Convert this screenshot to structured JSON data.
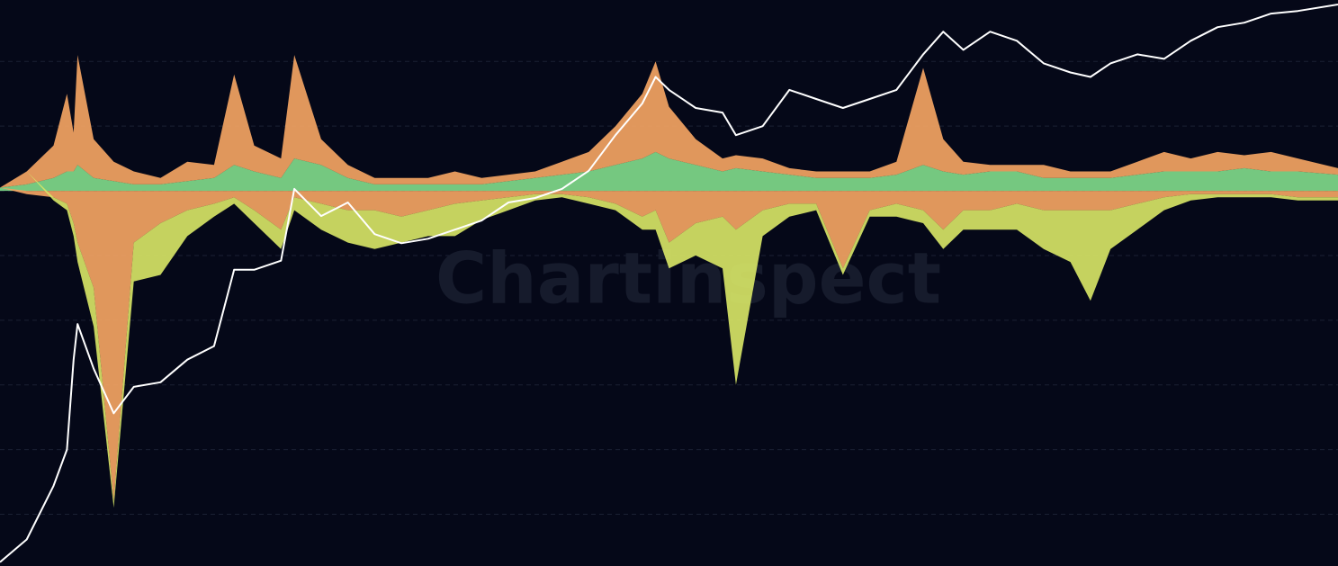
{
  "chart_data": {
    "type": "area",
    "watermark": "Chartinspect",
    "background": "#050818",
    "grid": true,
    "xlim": [
      0,
      100
    ],
    "ylim": [
      -5.8,
      2.95
    ],
    "yticks": [
      -5,
      -4,
      -3,
      -2,
      -1,
      0,
      1,
      2
    ],
    "x": [
      0,
      2,
      4,
      5,
      5.5,
      5.8,
      7,
      8.5,
      10,
      12,
      14,
      16,
      17.5,
      19,
      21,
      22,
      24,
      26,
      28,
      30,
      32,
      34,
      36,
      38,
      40,
      42,
      44,
      46,
      48,
      49,
      50,
      52,
      54,
      55,
      57,
      59,
      61,
      63,
      65,
      67,
      69,
      70.5,
      72,
      74,
      76,
      78,
      80,
      81.5,
      83,
      85,
      87,
      89,
      91,
      93,
      95,
      97,
      100
    ],
    "series": [
      {
        "type": "area",
        "color": "#7fd98a",
        "values": [
          0.05,
          0.1,
          0.2,
          0.3,
          0.3,
          0.4,
          0.2,
          0.15,
          0.1,
          0.1,
          0.15,
          0.2,
          0.4,
          0.3,
          0.2,
          0.5,
          0.4,
          0.2,
          0.1,
          0.1,
          0.1,
          0.1,
          0.1,
          0.15,
          0.2,
          0.25,
          0.3,
          0.4,
          0.5,
          0.6,
          0.5,
          0.4,
          0.3,
          0.35,
          0.3,
          0.25,
          0.2,
          0.2,
          0.2,
          0.25,
          0.4,
          0.3,
          0.25,
          0.3,
          0.3,
          0.2,
          0.2,
          0.2,
          0.2,
          0.25,
          0.3,
          0.3,
          0.3,
          0.35,
          0.3,
          0.3,
          0.25
        ]
      },
      {
        "type": "area",
        "color": "#f3a463",
        "values": [
          0,
          0.2,
          0.5,
          1.2,
          0.6,
          1.7,
          0.6,
          0.3,
          0.2,
          0.1,
          0.3,
          0.2,
          1.4,
          0.4,
          0.3,
          1.6,
          0.4,
          0.2,
          0.1,
          0.1,
          0.1,
          0.2,
          0.1,
          0.1,
          0.1,
          0.2,
          0.3,
          0.6,
          1.0,
          1.4,
          0.8,
          0.4,
          0.2,
          0.2,
          0.2,
          0.1,
          0.1,
          0.1,
          0.1,
          0.2,
          1.5,
          0.5,
          0.2,
          0.1,
          0.1,
          0.2,
          0.1,
          0.1,
          0.1,
          0.2,
          0.3,
          0.2,
          0.3,
          0.2,
          0.3,
          0.2,
          0.1
        ]
      },
      {
        "type": "area",
        "color": "#f3a463",
        "values": [
          0,
          -0.05,
          -0.1,
          -0.2,
          -0.5,
          -0.8,
          -1.5,
          -4.8,
          -0.8,
          -0.5,
          -0.3,
          -0.2,
          -0.1,
          -0.3,
          -0.6,
          -0.1,
          -0.2,
          -0.3,
          -0.3,
          -0.4,
          -0.3,
          -0.2,
          -0.15,
          -0.1,
          -0.05,
          -0.05,
          -0.1,
          -0.2,
          -0.4,
          -0.3,
          -0.8,
          -0.5,
          -0.4,
          -0.6,
          -0.3,
          -0.2,
          -0.2,
          -1.2,
          -0.3,
          -0.2,
          -0.3,
          -0.6,
          -0.3,
          -0.3,
          -0.2,
          -0.3,
          -0.3,
          -0.3,
          -0.3,
          -0.2,
          -0.1,
          -0.05,
          -0.05,
          -0.05,
          -0.05,
          -0.1,
          -0.1
        ]
      },
      {
        "type": "area",
        "color": "#d6e466",
        "values": [
          0,
          0,
          -0.05,
          -0.1,
          -0.2,
          -0.3,
          -0.6,
          -0.1,
          -0.6,
          -0.8,
          -0.4,
          -0.2,
          -0.1,
          -0.2,
          -0.3,
          -0.2,
          -0.4,
          -0.5,
          -0.6,
          -0.4,
          -0.4,
          -0.5,
          -0.3,
          -0.2,
          -0.1,
          -0.05,
          -0.1,
          -0.1,
          -0.2,
          -0.3,
          -0.4,
          -0.5,
          -0.8,
          -2.4,
          -0.4,
          -0.2,
          -0.1,
          -0.1,
          -0.1,
          -0.2,
          -0.2,
          -0.3,
          -0.3,
          -0.3,
          -0.4,
          -0.6,
          -0.8,
          -1.4,
          -0.6,
          -0.4,
          -0.2,
          -0.1,
          -0.05,
          -0.05,
          -0.05,
          -0.05,
          -0.05
        ]
      },
      {
        "type": "line",
        "color": "#ffffff",
        "values": [
          -5.74,
          -5.39,
          -4.56,
          -4.0,
          -2.61,
          -2.06,
          -2.75,
          -3.44,
          -3.03,
          -2.96,
          -2.61,
          -2.4,
          -1.22,
          -1.22,
          -1.08,
          0.03,
          -0.39,
          -0.18,
          -0.67,
          -0.81,
          -0.74,
          -0.6,
          -0.46,
          -0.18,
          -0.11,
          0.03,
          0.31,
          0.86,
          1.35,
          1.76,
          1.56,
          1.28,
          1.21,
          0.86,
          1.0,
          1.56,
          1.42,
          1.28,
          1.42,
          1.56,
          2.11,
          2.46,
          2.18,
          2.46,
          2.32,
          1.97,
          1.83,
          1.76,
          1.97,
          2.11,
          2.04,
          2.32,
          2.53,
          2.6,
          2.74,
          2.78,
          2.88
        ]
      }
    ]
  }
}
